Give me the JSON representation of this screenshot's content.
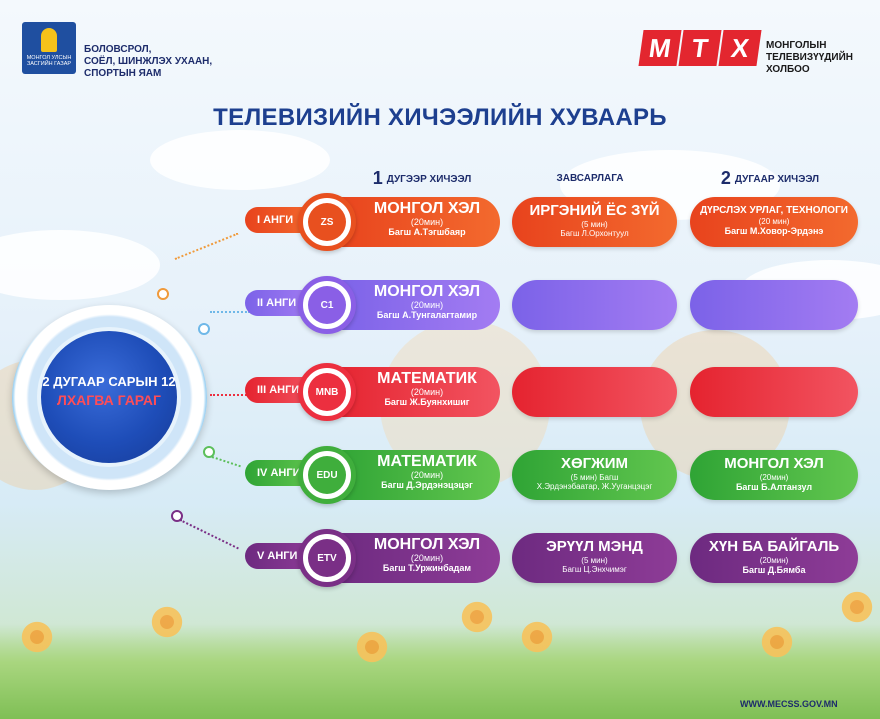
{
  "header": {
    "emblem_caption": "МОНГОЛ УЛСЫН ЗАСГИЙН ГАЗАР",
    "ministry_lines": [
      "БОЛОВСРОЛ,",
      "СОЁЛ, ШИНЖЛЭХ УХААН,",
      "СПОРТЫН ЯАМ"
    ],
    "mnb_letters": [
      "M",
      "T",
      "X"
    ],
    "mnb_lines": [
      "МОНГОЛЫН",
      "ТЕЛЕВИЗҮҮДИЙН",
      "ХОЛБОО"
    ]
  },
  "title": "ТЕЛЕВИЗИЙН ХИЧЭЭЛИЙН ХУВААРЬ",
  "columns": {
    "lesson1_num": "1",
    "lesson1_label": "ДУГЭЭР ХИЧЭЭЛ",
    "break_label": "ЗАВСАРЛАГА",
    "lesson2_num": "2",
    "lesson2_label": "ДУГААР ХИЧЭЭЛ"
  },
  "date": {
    "line1": "2 ДУГААР САРЫН 12",
    "line2": "ЛХАГВА ГАРАГ"
  },
  "rows": [
    {
      "grade": "I АНГИ",
      "channel_logo": "ZS",
      "color": "#e8501f",
      "lesson1": {
        "subject": "МОНГОЛ ХЭЛ",
        "duration": "(20мин)",
        "teacher": "Багш А.Тэгшбаяр"
      },
      "break": {
        "subject": "ИРГЭНИЙ ЁС ЗҮЙ",
        "duration": "(5 мин)",
        "teacher": "Багш Л.Орхонтуул"
      },
      "lesson2": {
        "subject": "ДҮРСЛЭХ УРЛАГ, ТЕХНОЛОГИ",
        "duration": "(20 мин)",
        "teacher": "Багш М.Ховор-Эрдэнэ"
      }
    },
    {
      "grade": "II АНГИ",
      "channel_logo": "C1",
      "color": "#8a5fe6",
      "lesson1": {
        "subject": "МОНГОЛ ХЭЛ",
        "duration": "(20мин)",
        "teacher": "Багш А.Тунгалагтамир"
      },
      "break": {
        "subject": "",
        "duration": "",
        "teacher": ""
      },
      "lesson2": {
        "subject": "",
        "duration": "",
        "teacher": ""
      }
    },
    {
      "grade": "III АНГИ",
      "channel_logo": "MNB",
      "color": "#ec2f3f",
      "lesson1": {
        "subject": "МАТЕМАТИК",
        "duration": "(20мин)",
        "teacher": "Багш Ж.Буянхишиг"
      },
      "break": {
        "subject": "",
        "duration": "",
        "teacher": ""
      },
      "lesson2": {
        "subject": "",
        "duration": "",
        "teacher": ""
      }
    },
    {
      "grade": "IV АНГИ",
      "channel_logo": "EDU",
      "color": "#3fae3c",
      "lesson1": {
        "subject": "МАТЕМАТИК",
        "duration": "(20мин)",
        "teacher": "Багш Д.Эрдэнэцэцэг"
      },
      "break": {
        "subject": "ХӨГЖИМ",
        "duration": "(5 мин) Багш",
        "teacher": "Х.Эрдэнэбаатар, Ж.Ууганцэцэг"
      },
      "lesson2": {
        "subject": "МОНГОЛ ХЭЛ",
        "duration": "(20мин)",
        "teacher": "Багш Б.Алтанзул"
      }
    },
    {
      "grade": "V АНГИ",
      "channel_logo": "ETV",
      "color": "#7a2f86",
      "lesson1": {
        "subject": "МОНГОЛ ХЭЛ",
        "duration": "(20мин)",
        "teacher": "Багш Т.Уржинбадам"
      },
      "break": {
        "subject": "ЭРҮҮЛ МЭНД",
        "duration": "(5 мин)",
        "teacher": "Багш Ц.Энхчимэг"
      },
      "lesson2": {
        "subject": "ХҮН БА БАЙГАЛЬ",
        "duration": "(20мин)",
        "teacher": "Багш Д.Бямба"
      }
    }
  ],
  "website": "WWW.MECSS.GOV.MN"
}
